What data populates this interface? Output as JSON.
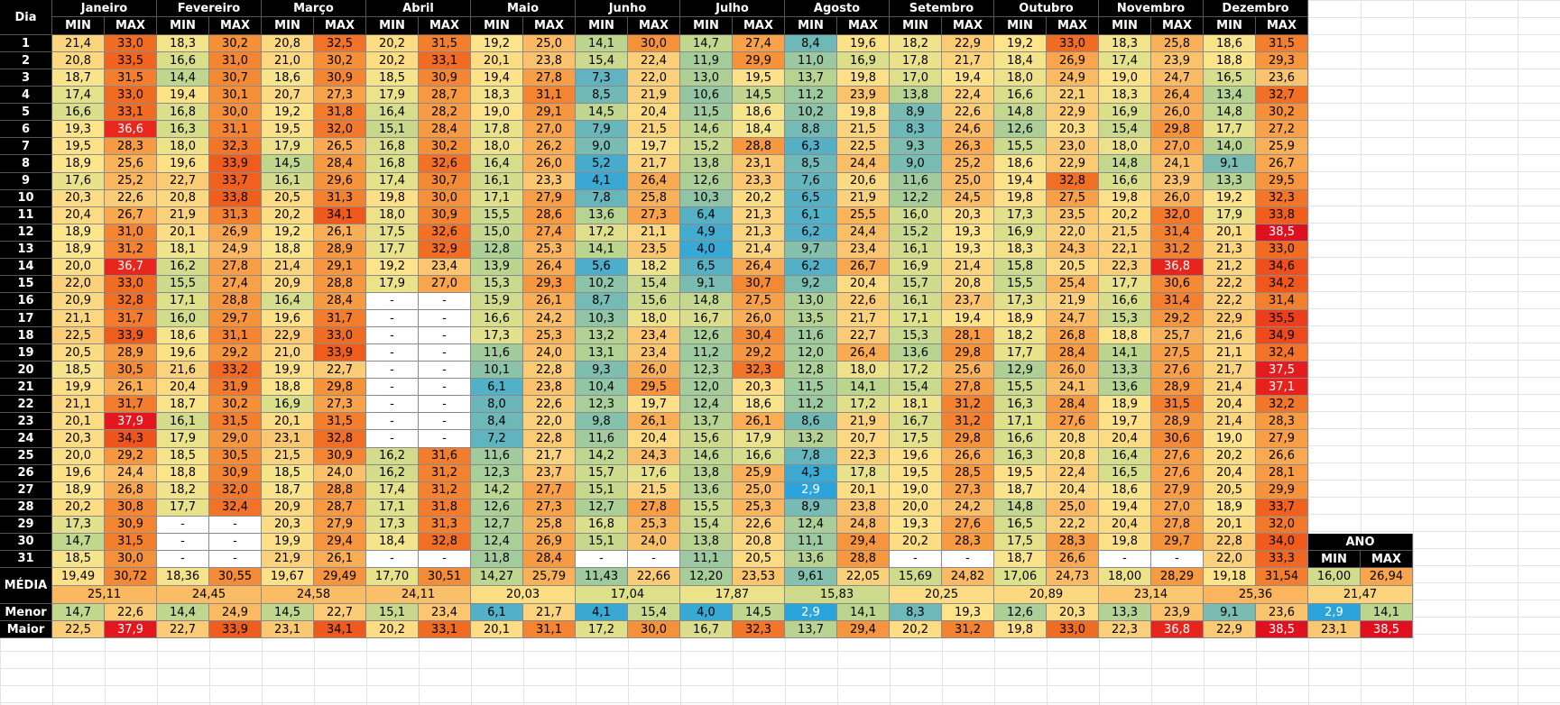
{
  "header": {
    "corner": "Dia",
    "months": [
      {
        "name": "Janeiro",
        "min": "MIN",
        "max": "MAX"
      },
      {
        "name": "Fevereiro",
        "min": "MIN",
        "max": "MAX"
      },
      {
        "name": "Março",
        "min": "MIN",
        "max": "MAX"
      },
      {
        "name": "Abril",
        "min": "MIN",
        "max": "MAX"
      },
      {
        "name": "Maio",
        "min": "MIN",
        "max": "MAX"
      },
      {
        "name": "Junho",
        "min": "MIN",
        "max": "MAX"
      },
      {
        "name": "Julho",
        "min": "MIN",
        "max": "MAX"
      },
      {
        "name": "Agosto",
        "min": "MIN",
        "max": "MAX"
      },
      {
        "name": "Setembro",
        "min": "MIN",
        "max": "MAX"
      },
      {
        "name": "Outubro",
        "min": "MIN",
        "max": "MAX"
      },
      {
        "name": "Novembro",
        "min": "MIN",
        "max": "MAX"
      },
      {
        "name": "Dezembro",
        "min": "MIN",
        "max": "MAX"
      }
    ]
  },
  "rows": [
    {
      "day": 1,
      "values": [
        "21,4",
        "33,0",
        "18,3",
        "30,2",
        "20,8",
        "32,5",
        "20,2",
        "31,5",
        "19,2",
        "25,0",
        "14,1",
        "30,0",
        "14,7",
        "27,4",
        "8,4",
        "19,6",
        "18,2",
        "22,9",
        "19,2",
        "33,0",
        "18,3",
        "25,8",
        "18,6",
        "31,5"
      ]
    },
    {
      "day": 2,
      "values": [
        "20,8",
        "33,5",
        "16,6",
        "31,0",
        "21,0",
        "30,2",
        "20,2",
        "33,1",
        "20,1",
        "23,8",
        "15,4",
        "22,4",
        "11,9",
        "29,9",
        "11,0",
        "16,9",
        "17,8",
        "21,7",
        "18,4",
        "26,9",
        "17,4",
        "23,9",
        "18,8",
        "29,3"
      ]
    },
    {
      "day": 3,
      "values": [
        "18,7",
        "31,5",
        "14,4",
        "30,7",
        "18,6",
        "30,9",
        "18,5",
        "30,9",
        "19,4",
        "27,8",
        "7,3",
        "22,0",
        "13,0",
        "19,5",
        "13,7",
        "19,8",
        "17,0",
        "19,4",
        "18,0",
        "24,9",
        "19,0",
        "24,7",
        "16,5",
        "23,6"
      ]
    },
    {
      "day": 4,
      "values": [
        "17,4",
        "33,0",
        "19,4",
        "30,1",
        "20,7",
        "27,3",
        "17,9",
        "28,7",
        "18,3",
        "31,1",
        "8,5",
        "21,9",
        "10,6",
        "14,5",
        "11,2",
        "23,9",
        "13,8",
        "22,4",
        "16,6",
        "22,1",
        "18,3",
        "26,4",
        "13,4",
        "32,7"
      ]
    },
    {
      "day": 5,
      "values": [
        "16,6",
        "33,1",
        "16,8",
        "30,0",
        "19,2",
        "31,8",
        "16,4",
        "28,2",
        "19,0",
        "29,1",
        "14,5",
        "20,4",
        "11,5",
        "18,6",
        "10,2",
        "19,8",
        "8,9",
        "22,6",
        "14,8",
        "22,9",
        "16,9",
        "26,0",
        "14,8",
        "30,2"
      ]
    },
    {
      "day": 6,
      "values": [
        "19,3",
        "36,6",
        "16,3",
        "31,1",
        "19,5",
        "32,0",
        "15,1",
        "28,4",
        "17,8",
        "27,0",
        "7,9",
        "21,5",
        "14,6",
        "18,4",
        "8,8",
        "21,5",
        "8,3",
        "24,6",
        "12,6",
        "20,3",
        "15,4",
        "29,8",
        "17,7",
        "27,2"
      ]
    },
    {
      "day": 7,
      "values": [
        "19,5",
        "28,3",
        "18,0",
        "32,3",
        "17,9",
        "26,5",
        "16,8",
        "30,2",
        "18,0",
        "26,2",
        "9,0",
        "19,7",
        "15,2",
        "28,8",
        "6,3",
        "22,5",
        "9,3",
        "26,3",
        "15,5",
        "23,0",
        "18,0",
        "27,0",
        "14,0",
        "25,9"
      ]
    },
    {
      "day": 8,
      "values": [
        "18,9",
        "25,6",
        "19,6",
        "33,9",
        "14,5",
        "28,4",
        "16,8",
        "32,6",
        "16,4",
        "26,0",
        "5,2",
        "21,7",
        "13,8",
        "23,1",
        "8,5",
        "24,4",
        "9,0",
        "25,2",
        "18,6",
        "22,9",
        "14,8",
        "24,1",
        "9,1",
        "26,7"
      ]
    },
    {
      "day": 9,
      "values": [
        "17,6",
        "25,2",
        "22,7",
        "33,7",
        "16,1",
        "29,6",
        "17,4",
        "30,7",
        "16,1",
        "23,3",
        "4,1",
        "26,4",
        "12,6",
        "23,3",
        "7,6",
        "20,6",
        "11,6",
        "25,0",
        "19,4",
        "32,8",
        "16,6",
        "23,9",
        "13,3",
        "29,5"
      ]
    },
    {
      "day": 10,
      "values": [
        "20,3",
        "22,6",
        "20,8",
        "33,8",
        "20,5",
        "31,3",
        "19,8",
        "30,0",
        "17,1",
        "27,9",
        "7,8",
        "25,8",
        "10,3",
        "20,2",
        "6,5",
        "21,9",
        "12,2",
        "24,5",
        "19,8",
        "27,5",
        "19,8",
        "26,0",
        "19,2",
        "32,3"
      ]
    },
    {
      "day": 11,
      "values": [
        "20,4",
        "26,7",
        "21,9",
        "31,3",
        "20,2",
        "34,1",
        "18,0",
        "30,9",
        "15,5",
        "28,6",
        "13,6",
        "27,3",
        "6,4",
        "21,3",
        "6,1",
        "25,5",
        "16,0",
        "20,3",
        "17,3",
        "23,5",
        "20,2",
        "32,0",
        "17,9",
        "33,8"
      ]
    },
    {
      "day": 12,
      "values": [
        "18,9",
        "31,0",
        "20,1",
        "26,9",
        "19,2",
        "26,1",
        "17,5",
        "32,6",
        "15,0",
        "27,4",
        "17,2",
        "21,1",
        "4,9",
        "21,3",
        "6,2",
        "24,4",
        "15,2",
        "19,3",
        "16,9",
        "22,0",
        "21,5",
        "31,4",
        "20,1",
        "38,5"
      ]
    },
    {
      "day": 13,
      "values": [
        "18,9",
        "31,2",
        "18,1",
        "24,9",
        "18,8",
        "28,9",
        "17,7",
        "32,9",
        "12,8",
        "25,3",
        "14,1",
        "23,5",
        "4,0",
        "21,4",
        "9,7",
        "23,4",
        "16,1",
        "19,3",
        "18,3",
        "24,3",
        "22,1",
        "31,2",
        "21,3",
        "33,0"
      ]
    },
    {
      "day": 14,
      "values": [
        "20,0",
        "36,7",
        "16,2",
        "27,8",
        "21,4",
        "29,1",
        "19,2",
        "23,4",
        "13,9",
        "26,4",
        "5,6",
        "18,2",
        "6,5",
        "26,4",
        "6,2",
        "26,7",
        "16,9",
        "21,4",
        "15,8",
        "20,5",
        "22,3",
        "36,8",
        "21,2",
        "34,6"
      ]
    },
    {
      "day": 15,
      "values": [
        "22,0",
        "33,0",
        "15,5",
        "27,4",
        "20,9",
        "28,8",
        "17,9",
        "27,0",
        "15,3",
        "29,3",
        "10,2",
        "15,4",
        "9,1",
        "30,7",
        "9,2",
        "20,4",
        "15,7",
        "20,8",
        "15,5",
        "25,4",
        "17,7",
        "30,6",
        "22,2",
        "34,2"
      ]
    },
    {
      "day": 16,
      "values": [
        "20,9",
        "32,8",
        "17,1",
        "28,8",
        "16,4",
        "28,4",
        "-",
        "-",
        "15,9",
        "26,1",
        "8,7",
        "15,6",
        "14,8",
        "27,5",
        "13,0",
        "22,6",
        "16,1",
        "23,7",
        "17,3",
        "21,9",
        "16,6",
        "31,4",
        "22,2",
        "31,4"
      ]
    },
    {
      "day": 17,
      "values": [
        "21,1",
        "31,7",
        "16,0",
        "29,7",
        "19,6",
        "31,7",
        "-",
        "-",
        "16,6",
        "24,2",
        "10,3",
        "18,0",
        "16,7",
        "26,0",
        "13,5",
        "21,7",
        "17,1",
        "19,4",
        "18,9",
        "24,7",
        "15,3",
        "29,2",
        "22,9",
        "35,5"
      ]
    },
    {
      "day": 18,
      "values": [
        "22,5",
        "33,9",
        "18,6",
        "31,1",
        "22,9",
        "33,0",
        "-",
        "-",
        "17,3",
        "25,3",
        "13,2",
        "23,4",
        "12,6",
        "30,4",
        "11,6",
        "22,7",
        "15,3",
        "28,1",
        "18,2",
        "26,8",
        "18,8",
        "25,7",
        "21,6",
        "34,9"
      ]
    },
    {
      "day": 19,
      "values": [
        "20,5",
        "28,9",
        "19,6",
        "29,2",
        "21,0",
        "33,9",
        "-",
        "-",
        "11,6",
        "24,0",
        "13,1",
        "23,4",
        "11,2",
        "29,2",
        "12,0",
        "26,4",
        "13,6",
        "29,8",
        "17,7",
        "28,4",
        "14,1",
        "27,5",
        "21,1",
        "32,4"
      ]
    },
    {
      "day": 20,
      "values": [
        "18,5",
        "30,5",
        "21,6",
        "33,2",
        "19,9",
        "22,7",
        "-",
        "-",
        "10,1",
        "22,8",
        "9,3",
        "26,0",
        "12,3",
        "32,3",
        "12,8",
        "18,0",
        "17,2",
        "25,6",
        "12,9",
        "26,0",
        "13,3",
        "27,6",
        "21,7",
        "37,5"
      ]
    },
    {
      "day": 21,
      "values": [
        "19,9",
        "26,1",
        "20,4",
        "31,9",
        "18,8",
        "29,8",
        "-",
        "-",
        "6,1",
        "23,8",
        "10,4",
        "29,5",
        "12,0",
        "20,3",
        "11,5",
        "14,1",
        "15,4",
        "27,8",
        "15,5",
        "24,1",
        "13,6",
        "28,9",
        "21,4",
        "37,1"
      ]
    },
    {
      "day": 22,
      "values": [
        "21,1",
        "31,7",
        "18,7",
        "30,2",
        "16,9",
        "27,3",
        "-",
        "-",
        "8,0",
        "22,6",
        "12,3",
        "19,7",
        "12,4",
        "18,6",
        "11,2",
        "17,2",
        "18,1",
        "31,2",
        "16,3",
        "28,4",
        "18,9",
        "31,5",
        "20,4",
        "32,2"
      ]
    },
    {
      "day": 23,
      "values": [
        "20,1",
        "37,9",
        "16,1",
        "31,5",
        "20,1",
        "31,5",
        "-",
        "-",
        "8,4",
        "22,0",
        "9,8",
        "26,1",
        "13,7",
        "26,1",
        "8,6",
        "21,9",
        "16,7",
        "31,2",
        "17,1",
        "27,6",
        "19,7",
        "28,9",
        "21,4",
        "28,3"
      ]
    },
    {
      "day": 24,
      "values": [
        "20,3",
        "34,3",
        "17,9",
        "29,0",
        "23,1",
        "32,8",
        "-",
        "-",
        "7,2",
        "22,8",
        "11,6",
        "20,4",
        "15,6",
        "17,9",
        "13,2",
        "20,7",
        "17,5",
        "29,8",
        "16,6",
        "20,8",
        "20,4",
        "30,6",
        "19,0",
        "27,9"
      ]
    },
    {
      "day": 25,
      "values": [
        "20,0",
        "29,2",
        "18,5",
        "30,5",
        "21,5",
        "30,9",
        "16,2",
        "31,6",
        "11,6",
        "21,7",
        "14,2",
        "24,3",
        "14,6",
        "16,6",
        "7,8",
        "22,3",
        "19,6",
        "26,6",
        "16,3",
        "20,8",
        "16,4",
        "27,6",
        "20,2",
        "26,6"
      ]
    },
    {
      "day": 26,
      "values": [
        "19,6",
        "24,4",
        "18,8",
        "30,9",
        "18,5",
        "24,0",
        "16,2",
        "31,2",
        "12,3",
        "23,7",
        "15,7",
        "17,6",
        "13,8",
        "25,9",
        "4,3",
        "17,8",
        "19,5",
        "28,5",
        "19,5",
        "22,4",
        "16,5",
        "27,6",
        "20,4",
        "28,1"
      ]
    },
    {
      "day": 27,
      "values": [
        "18,9",
        "26,8",
        "18,2",
        "32,0",
        "18,7",
        "28,8",
        "17,4",
        "31,2",
        "14,2",
        "27,7",
        "15,1",
        "21,5",
        "13,6",
        "25,0",
        "2,9",
        "20,1",
        "19,0",
        "27,3",
        "18,7",
        "20,4",
        "18,6",
        "27,9",
        "20,5",
        "29,9"
      ]
    },
    {
      "day": 28,
      "values": [
        "20,2",
        "30,8",
        "17,7",
        "32,4",
        "20,9",
        "28,7",
        "17,1",
        "31,8",
        "12,6",
        "27,3",
        "12,7",
        "27,8",
        "15,5",
        "25,3",
        "8,9",
        "23,8",
        "20,0",
        "24,2",
        "14,8",
        "25,0",
        "19,4",
        "27,0",
        "18,9",
        "33,7"
      ]
    },
    {
      "day": 29,
      "values": [
        "17,3",
        "30,9",
        "-",
        "-",
        "20,3",
        "27,9",
        "17,3",
        "31,3",
        "12,7",
        "25,8",
        "16,8",
        "25,3",
        "15,4",
        "22,6",
        "12,4",
        "24,8",
        "19,3",
        "27,6",
        "16,5",
        "22,2",
        "20,4",
        "27,8",
        "20,1",
        "32,0"
      ]
    },
    {
      "day": 30,
      "values": [
        "14,7",
        "31,5",
        "-",
        "-",
        "19,9",
        "29,4",
        "18,4",
        "32,8",
        "12,4",
        "26,9",
        "15,1",
        "24,0",
        "13,8",
        "20,8",
        "11,1",
        "29,4",
        "20,2",
        "28,3",
        "17,5",
        "28,3",
        "19,8",
        "29,7",
        "22,8",
        "34,0"
      ]
    },
    {
      "day": 31,
      "values": [
        "18,5",
        "30,0",
        "-",
        "-",
        "21,9",
        "26,1",
        "-",
        "-",
        "11,8",
        "28,4",
        "-",
        "-",
        "11,1",
        "20,5",
        "13,6",
        "28,8",
        "-",
        "-",
        "18,7",
        "26,6",
        "-",
        "-",
        "22,0",
        "33,3"
      ]
    }
  ],
  "footer": {
    "media": {
      "label": "MÉDIA",
      "values": [
        "19,49",
        "30,72",
        "18,36",
        "30,55",
        "19,67",
        "29,49",
        "17,70",
        "30,51",
        "14,27",
        "25,79",
        "11,43",
        "22,66",
        "12,20",
        "23,53",
        "9,61",
        "22,05",
        "15,69",
        "24,82",
        "17,06",
        "24,73",
        "18,00",
        "28,29",
        "19,18",
        "31,54"
      ],
      "averages": [
        "25,11",
        "24,45",
        "24,58",
        "24,11",
        "20,03",
        "17,04",
        "17,87",
        "15,83",
        "20,25",
        "20,89",
        "23,14",
        "25,36"
      ]
    },
    "menor": {
      "label": "Menor",
      "values": [
        "14,7",
        "22,6",
        "14,4",
        "24,9",
        "14,5",
        "22,7",
        "15,1",
        "23,4",
        "6,1",
        "21,7",
        "4,1",
        "15,4",
        "4,0",
        "14,5",
        "2,9",
        "14,1",
        "8,3",
        "19,3",
        "12,6",
        "20,3",
        "13,3",
        "23,9",
        "9,1",
        "23,6"
      ]
    },
    "maior": {
      "label": "Maior",
      "values": [
        "22,5",
        "37,9",
        "22,7",
        "33,9",
        "23,1",
        "34,1",
        "20,2",
        "33,1",
        "20,1",
        "31,1",
        "17,2",
        "30,0",
        "16,7",
        "32,3",
        "13,7",
        "29,4",
        "20,2",
        "31,2",
        "19,8",
        "33,0",
        "22,3",
        "36,8",
        "22,9",
        "38,5"
      ]
    }
  },
  "ano": {
    "title": "ANO",
    "min": "MIN",
    "max": "MAX",
    "media": [
      "16,00",
      "26,94"
    ],
    "media_average": "21,47",
    "menor": [
      "2,9",
      "14,1"
    ],
    "maior": [
      "23,1",
      "38,5"
    ]
  }
}
